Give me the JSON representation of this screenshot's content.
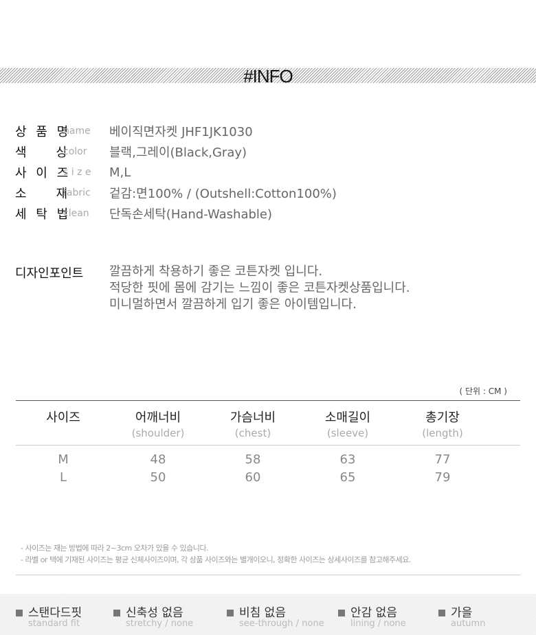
{
  "header": {
    "title": "#INFO"
  },
  "info": [
    {
      "label": "상 품 명",
      "en": "name",
      "value": "베이직면자켓 JHF1JK1030"
    },
    {
      "label": "색    상",
      "en": "color",
      "value": "블랙,그레이(Black,Gray)"
    },
    {
      "label": "사 이 즈",
      "en": "s i z e",
      "value": "M,L"
    },
    {
      "label": "소    재",
      "en": "fabric",
      "value": "겉감:면100% / (Outshell:Cotton100%)"
    },
    {
      "label": "세 탁 법",
      "en": "clean",
      "value": "단독손세탁(Hand-Washable)"
    }
  ],
  "design": {
    "label": "디자인포인트",
    "lines": [
      "깔끔하게 착용하기 좋은 코튼자켓 입니다.",
      "적당한 핏에 몸에 감기는 느낌이 좋은 코튼자켓상품입니다.",
      "미니멀하면서 깔끔하게 입기 좋은 아이템입니다."
    ]
  },
  "size_table": {
    "unit": "( 단위 : CM )",
    "headers": [
      {
        "ko": "사이즈",
        "en": ""
      },
      {
        "ko": "어깨너비",
        "en": "(shoulder)"
      },
      {
        "ko": "가슴너비",
        "en": "(chest)"
      },
      {
        "ko": "소매길이",
        "en": "(sleeve)"
      },
      {
        "ko": "총기장",
        "en": "(length)"
      }
    ],
    "rows": [
      [
        "M",
        "48",
        "58",
        "63",
        "77"
      ],
      [
        "L",
        "50",
        "60",
        "65",
        "79"
      ]
    ]
  },
  "notes": [
    "- 사이즈는 재는 방법에 따라 2~3cm 오차가 있을 수 있습니다.",
    "- 라벨 or 택에 기재된 사이즈는 평균 신체사이즈이며, 각 상품 사이즈와는 별개이오니, 정확한 사이즈는 상세사이즈를 참고해주세요."
  ],
  "features": [
    {
      "ko": "스탠다드핏",
      "en": "standard fit"
    },
    {
      "ko": "신축성 없음",
      "en": "stretchy / none"
    },
    {
      "ko": "비침 없음",
      "en": "see-through / none"
    },
    {
      "ko": "안감 없음",
      "en": "lining / none"
    },
    {
      "ko": "가을",
      "en": "autumn"
    }
  ]
}
